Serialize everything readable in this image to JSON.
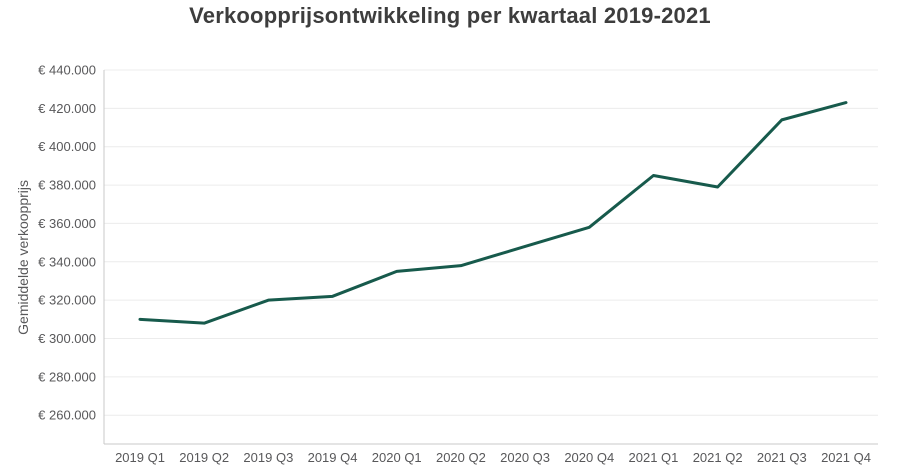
{
  "chart_data": {
    "type": "line",
    "title": "Verkoopprijsontwikkeling per kwartaal 2019-2021",
    "xlabel": "",
    "ylabel": "Gemiddelde verkoopprijs",
    "categories": [
      "2019 Q1",
      "2019 Q2",
      "2019 Q3",
      "2019 Q4",
      "2020 Q1",
      "2020 Q2",
      "2020 Q3",
      "2020 Q4",
      "2021 Q1",
      "2021 Q2",
      "2021 Q3",
      "2021 Q4"
    ],
    "series": [
      {
        "name": "Gemiddelde verkoopprijs",
        "values": [
          310000,
          308000,
          320000,
          322000,
          335000,
          338000,
          348000,
          358000,
          385000,
          379000,
          414000,
          423000
        ]
      }
    ],
    "y_ticks": [
      260000,
      280000,
      300000,
      320000,
      340000,
      360000,
      380000,
      400000,
      420000,
      440000
    ],
    "ylim": [
      245000,
      440000
    ],
    "currency_prefix": "€ ",
    "thousands_separator": ".",
    "grid": true,
    "legend_position": "none",
    "colors": {
      "line": "#175a4c",
      "grid": "#ececec",
      "axis": "#c9c9c9",
      "tick_label": "#58585a",
      "title": "#3d3d3d"
    }
  }
}
